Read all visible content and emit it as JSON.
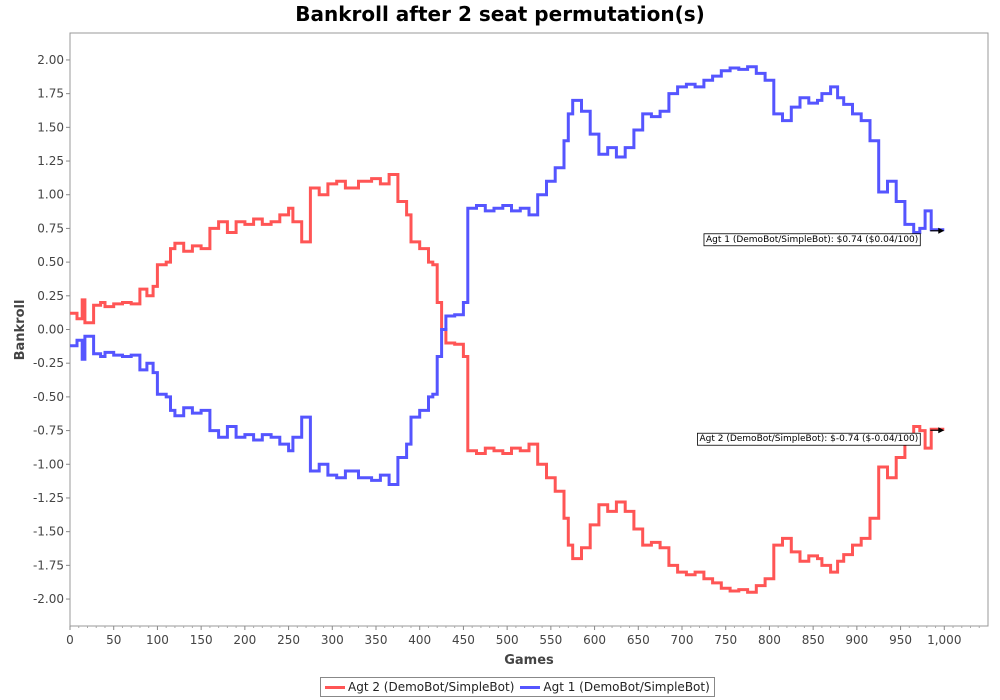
{
  "chart_data": {
    "type": "line",
    "title": "Bankroll after 2 seat permutation(s)",
    "xlabel": "Games",
    "ylabel": "Bankroll",
    "xlim": [
      0,
      1050
    ],
    "ylim": [
      -2.2,
      2.2
    ],
    "x_ticks": [
      "0",
      "50",
      "100",
      "150",
      "200",
      "250",
      "300",
      "350",
      "400",
      "450",
      "500",
      "550",
      "600",
      "650",
      "700",
      "750",
      "800",
      "850",
      "900",
      "950",
      "1,000"
    ],
    "y_ticks": [
      "2.00",
      "1.75",
      "1.50",
      "1.25",
      "1.00",
      "0.75",
      "0.50",
      "0.25",
      "0.00",
      "-0.25",
      "-0.50",
      "-0.75",
      "-1.00",
      "-1.25",
      "-1.50",
      "-1.75",
      "-2.00"
    ],
    "grid": false,
    "legend_position": "bottom",
    "series": [
      {
        "name": "Agt 2 (DemoBot/SimpleBot)",
        "color": "#ff5555",
        "points": [
          [
            0,
            0.12
          ],
          [
            8,
            0.08
          ],
          [
            14,
            0.22
          ],
          [
            17,
            0.05
          ],
          [
            27,
            0.18
          ],
          [
            35,
            0.2
          ],
          [
            40,
            0.17
          ],
          [
            50,
            0.19
          ],
          [
            60,
            0.2
          ],
          [
            70,
            0.19
          ],
          [
            80,
            0.3
          ],
          [
            88,
            0.25
          ],
          [
            95,
            0.32
          ],
          [
            100,
            0.48
          ],
          [
            110,
            0.5
          ],
          [
            115,
            0.6
          ],
          [
            120,
            0.64
          ],
          [
            130,
            0.58
          ],
          [
            140,
            0.62
          ],
          [
            150,
            0.6
          ],
          [
            160,
            0.75
          ],
          [
            170,
            0.8
          ],
          [
            180,
            0.72
          ],
          [
            190,
            0.8
          ],
          [
            200,
            0.78
          ],
          [
            210,
            0.82
          ],
          [
            220,
            0.78
          ],
          [
            230,
            0.8
          ],
          [
            240,
            0.85
          ],
          [
            250,
            0.9
          ],
          [
            255,
            0.8
          ],
          [
            265,
            0.65
          ],
          [
            275,
            1.05
          ],
          [
            285,
            1.0
          ],
          [
            295,
            1.08
          ],
          [
            305,
            1.1
          ],
          [
            315,
            1.05
          ],
          [
            330,
            1.1
          ],
          [
            345,
            1.12
          ],
          [
            355,
            1.08
          ],
          [
            365,
            1.15
          ],
          [
            375,
            0.95
          ],
          [
            385,
            0.85
          ],
          [
            390,
            0.65
          ],
          [
            400,
            0.6
          ],
          [
            410,
            0.5
          ],
          [
            415,
            0.48
          ],
          [
            420,
            0.2
          ],
          [
            425,
            0.0
          ],
          [
            430,
            -0.1
          ],
          [
            440,
            -0.11
          ],
          [
            450,
            -0.2
          ],
          [
            455,
            -0.9
          ],
          [
            465,
            -0.92
          ],
          [
            475,
            -0.88
          ],
          [
            485,
            -0.9
          ],
          [
            495,
            -0.92
          ],
          [
            505,
            -0.88
          ],
          [
            515,
            -0.9
          ],
          [
            525,
            -0.85
          ],
          [
            535,
            -1.0
          ],
          [
            545,
            -1.1
          ],
          [
            555,
            -1.2
          ],
          [
            565,
            -1.4
          ],
          [
            570,
            -1.6
          ],
          [
            575,
            -1.7
          ],
          [
            585,
            -1.62
          ],
          [
            595,
            -1.45
          ],
          [
            605,
            -1.3
          ],
          [
            615,
            -1.35
          ],
          [
            625,
            -1.28
          ],
          [
            635,
            -1.35
          ],
          [
            645,
            -1.48
          ],
          [
            655,
            -1.6
          ],
          [
            665,
            -1.58
          ],
          [
            675,
            -1.62
          ],
          [
            685,
            -1.75
          ],
          [
            695,
            -1.8
          ],
          [
            705,
            -1.82
          ],
          [
            715,
            -1.8
          ],
          [
            725,
            -1.85
          ],
          [
            735,
            -1.88
          ],
          [
            745,
            -1.92
          ],
          [
            755,
            -1.94
          ],
          [
            765,
            -1.93
          ],
          [
            775,
            -1.95
          ],
          [
            785,
            -1.9
          ],
          [
            795,
            -1.85
          ],
          [
            805,
            -1.6
          ],
          [
            815,
            -1.55
          ],
          [
            825,
            -1.65
          ],
          [
            835,
            -1.72
          ],
          [
            845,
            -1.68
          ],
          [
            855,
            -1.7
          ],
          [
            860,
            -1.75
          ],
          [
            870,
            -1.8
          ],
          [
            878,
            -1.72
          ],
          [
            885,
            -1.67
          ],
          [
            895,
            -1.6
          ],
          [
            905,
            -1.55
          ],
          [
            915,
            -1.4
          ],
          [
            925,
            -1.02
          ],
          [
            935,
            -1.1
          ],
          [
            945,
            -0.95
          ],
          [
            955,
            -0.78
          ],
          [
            965,
            -0.72
          ],
          [
            972,
            -0.75
          ],
          [
            978,
            -0.88
          ],
          [
            985,
            -0.74
          ],
          [
            1000,
            -0.74
          ]
        ]
      },
      {
        "name": "Agt 1 (DemoBot/SimpleBot)",
        "color": "#5555ff",
        "points": [
          [
            0,
            -0.12
          ],
          [
            8,
            -0.08
          ],
          [
            14,
            -0.22
          ],
          [
            17,
            -0.05
          ],
          [
            27,
            -0.18
          ],
          [
            35,
            -0.2
          ],
          [
            40,
            -0.17
          ],
          [
            50,
            -0.19
          ],
          [
            60,
            -0.2
          ],
          [
            70,
            -0.19
          ],
          [
            80,
            -0.3
          ],
          [
            88,
            -0.25
          ],
          [
            95,
            -0.32
          ],
          [
            100,
            -0.48
          ],
          [
            110,
            -0.5
          ],
          [
            115,
            -0.6
          ],
          [
            120,
            -0.64
          ],
          [
            130,
            -0.58
          ],
          [
            140,
            -0.62
          ],
          [
            150,
            -0.6
          ],
          [
            160,
            -0.75
          ],
          [
            170,
            -0.8
          ],
          [
            180,
            -0.72
          ],
          [
            190,
            -0.8
          ],
          [
            200,
            -0.78
          ],
          [
            210,
            -0.82
          ],
          [
            220,
            -0.78
          ],
          [
            230,
            -0.8
          ],
          [
            240,
            -0.85
          ],
          [
            250,
            -0.9
          ],
          [
            255,
            -0.8
          ],
          [
            265,
            -0.65
          ],
          [
            275,
            -1.05
          ],
          [
            285,
            -1.0
          ],
          [
            295,
            -1.08
          ],
          [
            305,
            -1.1
          ],
          [
            315,
            -1.05
          ],
          [
            330,
            -1.1
          ],
          [
            345,
            -1.12
          ],
          [
            355,
            -1.08
          ],
          [
            365,
            -1.15
          ],
          [
            375,
            -0.95
          ],
          [
            385,
            -0.85
          ],
          [
            390,
            -0.65
          ],
          [
            400,
            -0.6
          ],
          [
            410,
            -0.5
          ],
          [
            415,
            -0.48
          ],
          [
            420,
            -0.2
          ],
          [
            425,
            0.0
          ],
          [
            430,
            0.1
          ],
          [
            440,
            0.11
          ],
          [
            450,
            0.2
          ],
          [
            455,
            0.9
          ],
          [
            465,
            0.92
          ],
          [
            475,
            0.88
          ],
          [
            485,
            0.9
          ],
          [
            495,
            0.92
          ],
          [
            505,
            0.88
          ],
          [
            515,
            0.9
          ],
          [
            525,
            0.85
          ],
          [
            535,
            1.0
          ],
          [
            545,
            1.1
          ],
          [
            555,
            1.2
          ],
          [
            565,
            1.4
          ],
          [
            570,
            1.6
          ],
          [
            575,
            1.7
          ],
          [
            585,
            1.62
          ],
          [
            595,
            1.45
          ],
          [
            605,
            1.3
          ],
          [
            615,
            1.35
          ],
          [
            625,
            1.28
          ],
          [
            635,
            1.35
          ],
          [
            645,
            1.48
          ],
          [
            655,
            1.6
          ],
          [
            665,
            1.58
          ],
          [
            675,
            1.62
          ],
          [
            685,
            1.75
          ],
          [
            695,
            1.8
          ],
          [
            705,
            1.82
          ],
          [
            715,
            1.8
          ],
          [
            725,
            1.85
          ],
          [
            735,
            1.88
          ],
          [
            745,
            1.92
          ],
          [
            755,
            1.94
          ],
          [
            765,
            1.93
          ],
          [
            775,
            1.95
          ],
          [
            785,
            1.9
          ],
          [
            795,
            1.85
          ],
          [
            805,
            1.6
          ],
          [
            815,
            1.55
          ],
          [
            825,
            1.65
          ],
          [
            835,
            1.72
          ],
          [
            845,
            1.68
          ],
          [
            855,
            1.7
          ],
          [
            860,
            1.75
          ],
          [
            870,
            1.8
          ],
          [
            878,
            1.72
          ],
          [
            885,
            1.67
          ],
          [
            895,
            1.6
          ],
          [
            905,
            1.55
          ],
          [
            915,
            1.4
          ],
          [
            925,
            1.02
          ],
          [
            935,
            1.1
          ],
          [
            945,
            0.95
          ],
          [
            955,
            0.78
          ],
          [
            965,
            0.72
          ],
          [
            972,
            0.75
          ],
          [
            978,
            0.88
          ],
          [
            985,
            0.74
          ],
          [
            1000,
            0.74
          ]
        ]
      }
    ],
    "annotations": [
      {
        "text": "Agt 1 (DemoBot/SimpleBot): $0.74 ($0.04/100)",
        "x": 1000,
        "y": 0.74
      },
      {
        "text": "Agt 2 (DemoBot/SimpleBot): $-0.74 ($-0.04/100)",
        "x": 1000,
        "y": -0.74
      }
    ]
  }
}
